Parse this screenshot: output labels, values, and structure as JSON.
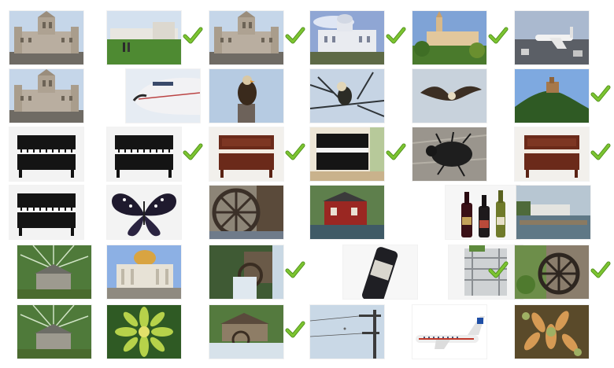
{
  "colors": {
    "check": "#7cc431",
    "check_dark": "#4f8f1a"
  },
  "rows": [
    {
      "cells": [
        {
          "icon": "palace-photo-icon",
          "checked": false
        },
        {
          "icon": "palace-lawn-photo-icon",
          "checked": true
        },
        {
          "icon": "palace-photo-icon",
          "checked": true
        },
        {
          "icon": "white-palace-photo-icon",
          "checked": true
        },
        {
          "icon": "palace-garden-photo-icon",
          "checked": true
        },
        {
          "icon": "airplane-tarmac-photo-icon",
          "checked": false
        }
      ]
    },
    {
      "cells": [
        {
          "icon": "palace-photo-icon",
          "checked": false
        },
        {
          "icon": "airplane-nose-photo-icon",
          "checked": false
        },
        {
          "icon": "bird-perched-photo-icon",
          "checked": false
        },
        {
          "icon": "bird-branch-photo-icon",
          "checked": false
        },
        {
          "icon": "bird-flying-photo-icon",
          "checked": false
        },
        {
          "icon": "hill-castle-photo-icon",
          "checked": true
        }
      ]
    },
    {
      "cells": [
        {
          "icon": "piano-black-photo-icon",
          "checked": false
        },
        {
          "icon": "piano-black-photo-icon",
          "checked": true
        },
        {
          "icon": "piano-brown-photo-icon",
          "checked": true
        },
        {
          "icon": "piano-room-photo-icon",
          "checked": true
        },
        {
          "icon": "beetle-photo-icon",
          "checked": false
        },
        {
          "icon": "piano-brown-photo-icon",
          "checked": true
        }
      ]
    },
    {
      "cells": [
        {
          "icon": "piano-black-photo-icon",
          "checked": false
        },
        {
          "icon": "butterfly-photo-icon",
          "checked": false
        },
        {
          "icon": "water-wheel-photo-icon",
          "checked": false
        },
        {
          "icon": "red-mill-photo-icon",
          "checked": false
        },
        {
          "icon": "wine-bottles-photo-icon",
          "checked": false
        },
        {
          "icon": "pier-house-photo-icon",
          "checked": false
        }
      ]
    },
    {
      "cells": [
        {
          "icon": "forest-cabin-photo-icon",
          "checked": false
        },
        {
          "icon": "domed-palace-photo-icon",
          "checked": false
        },
        {
          "icon": "mill-waterfall-photo-icon",
          "checked": true
        },
        {
          "icon": "wine-bottle-closeup-photo-icon",
          "checked": false
        },
        {
          "icon": "dish-rack-photo-icon",
          "checked": true
        },
        {
          "icon": "water-wheel-garden-photo-icon",
          "checked": true
        }
      ]
    },
    {
      "cells": [
        {
          "icon": "forest-cabin-photo-icon",
          "checked": false
        },
        {
          "icon": "succulent-green-photo-icon",
          "checked": false
        },
        {
          "icon": "mill-stream-photo-icon",
          "checked": true
        },
        {
          "icon": "power-pole-photo-icon",
          "checked": false
        },
        {
          "icon": "jet-airplane-photo-icon",
          "checked": false
        },
        {
          "icon": "succulent-orange-photo-icon",
          "checked": false
        }
      ]
    }
  ]
}
